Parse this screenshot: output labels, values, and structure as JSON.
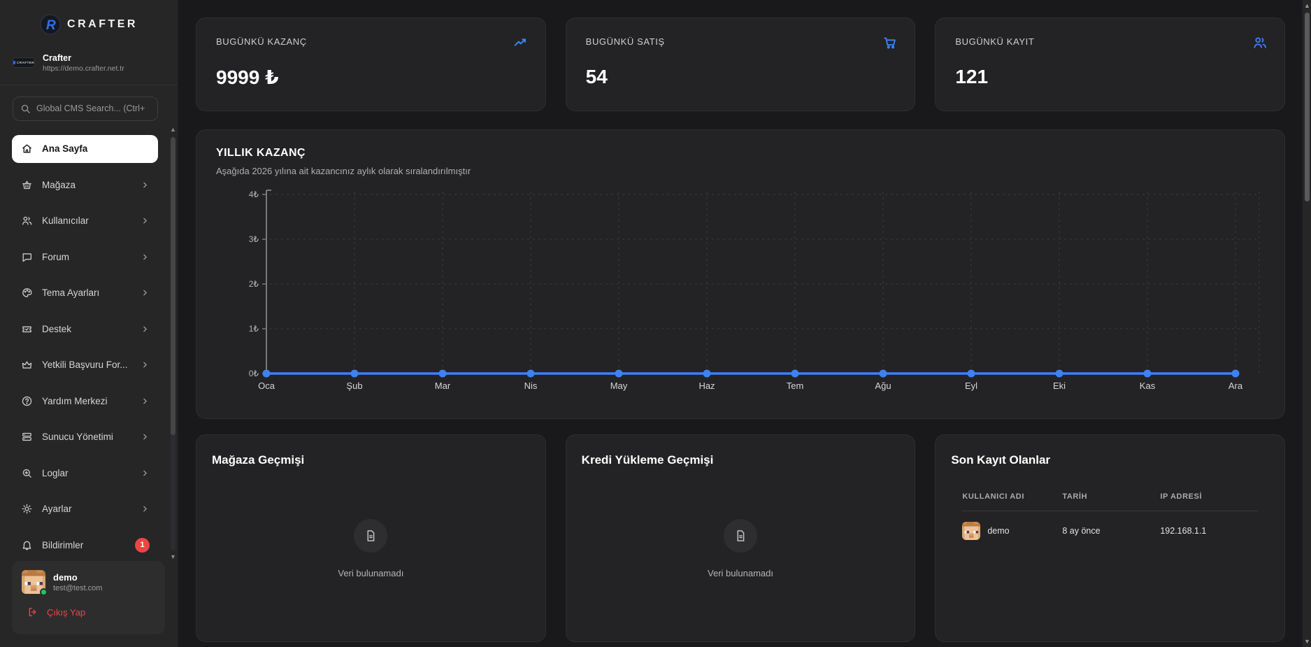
{
  "brand": {
    "logo_text": "CRAFTER",
    "site_name": "Crafter",
    "site_url": "https://demo.crafter.net.tr"
  },
  "search": {
    "placeholder": "Global CMS Search... (Ctrl+"
  },
  "sidebar": {
    "items": [
      {
        "label": "Ana Sayfa",
        "active": true
      },
      {
        "label": "Mağaza"
      },
      {
        "label": "Kullanıcılar"
      },
      {
        "label": "Forum"
      },
      {
        "label": "Tema Ayarları"
      },
      {
        "label": "Destek"
      },
      {
        "label": "Yetkili Başvuru For..."
      },
      {
        "label": "Yardım Merkezi"
      },
      {
        "label": "Sunucu Yönetimi"
      },
      {
        "label": "Loglar"
      },
      {
        "label": "Ayarlar"
      },
      {
        "label": "Bildirimler",
        "badge": "1"
      }
    ]
  },
  "user": {
    "name": "demo",
    "email": "test@test.com",
    "logout_label": "Çıkış Yap"
  },
  "stats": [
    {
      "label": "BUGÜNKÜ KAZANÇ",
      "value": "9999 ₺",
      "icon": "trending-up-icon"
    },
    {
      "label": "BUGÜNKÜ SATIŞ",
      "value": "54",
      "icon": "cart-icon"
    },
    {
      "label": "BUGÜNKÜ KAYIT",
      "value": "121",
      "icon": "users-icon"
    }
  ],
  "chart": {
    "title": "YILLIK KAZANÇ",
    "subtitle": "Aşağıda 2026 yılına ait kazancınız aylık olarak sıralandırılmıştır"
  },
  "chart_data": {
    "type": "line",
    "title": "YILLIK KAZANÇ",
    "categories": [
      "Oca",
      "Şub",
      "Mar",
      "Nis",
      "May",
      "Haz",
      "Tem",
      "Ağu",
      "Eyl",
      "Eki",
      "Kas",
      "Ara"
    ],
    "values": [
      0,
      0,
      0,
      0,
      0,
      0,
      0,
      0,
      0,
      0,
      0,
      0
    ],
    "xlabel": "",
    "ylabel": "",
    "ylim": [
      0,
      4
    ],
    "yticks": [
      "0₺",
      "1₺",
      "2₺",
      "3₺",
      "4₺"
    ],
    "grid": true,
    "legend": false,
    "line_color": "#3b82f6"
  },
  "panels": {
    "store_history": {
      "title": "Mağaza Geçmişi",
      "empty": "Veri bulunamadı"
    },
    "credit_history": {
      "title": "Kredi Yükleme Geçmişi",
      "empty": "Veri bulunamadı"
    },
    "recent_registrations": {
      "title": "Son Kayıt Olanlar",
      "columns": [
        "KULLANICI ADI",
        "TARİH",
        "IP ADRESİ"
      ],
      "rows": [
        {
          "username": "demo",
          "date": "8 ay önce",
          "ip": "192.168.1.1"
        }
      ]
    }
  },
  "colors": {
    "accent": "#3b82f6",
    "danger": "#ef4444",
    "online": "#22c55e"
  }
}
